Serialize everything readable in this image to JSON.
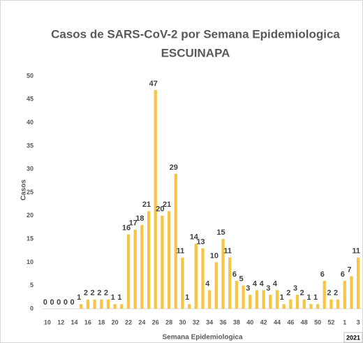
{
  "chart_data": {
    "type": "bar",
    "title": "Casos de SARS-CoV-2 por Semana Epidemiologica",
    "subtitle": "ESCUINAPA",
    "y_label": "Casos",
    "x_label": "Semana Epidemiologica",
    "year_label": "2021",
    "categories": [
      "10",
      null,
      "12",
      null,
      "14",
      null,
      "16",
      null,
      "18",
      null,
      "20",
      null,
      "22",
      null,
      "24",
      null,
      "26",
      null,
      "28",
      null,
      "30",
      null,
      "32",
      null,
      "34",
      null,
      "36",
      null,
      "38",
      null,
      "40",
      null,
      "42",
      null,
      "44",
      null,
      "46",
      null,
      "48",
      null,
      "50",
      null,
      "52",
      null,
      "1",
      null,
      "3"
    ],
    "values": [
      0,
      0,
      0,
      0,
      0,
      1,
      2,
      2,
      2,
      2,
      1,
      1,
      16,
      17,
      18,
      21,
      47,
      20,
      21,
      29,
      11,
      1,
      14,
      13,
      4,
      10,
      15,
      11,
      6,
      5,
      3,
      4,
      4,
      3,
      4,
      1,
      2,
      3,
      2,
      1,
      1,
      6,
      2,
      2,
      6,
      7,
      11
    ],
    "color": "#f7c443",
    "ylim": [
      0,
      50
    ],
    "yticks": [
      0,
      5,
      10,
      15,
      20,
      25,
      30,
      35,
      40,
      45,
      50
    ],
    "grid": false
  }
}
